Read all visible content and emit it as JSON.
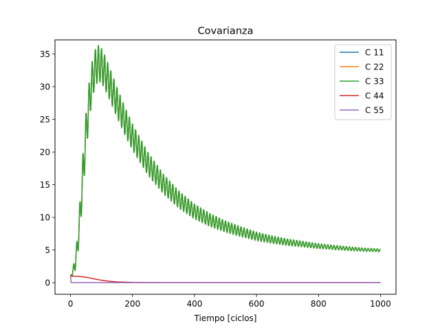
{
  "chart_data": {
    "type": "line",
    "title": "Covarianza",
    "xlabel": "Tiempo [ciclos]",
    "ylabel": "",
    "xlim": [
      -50,
      1050
    ],
    "ylim": [
      -1.77,
      37.17
    ],
    "xticks": [
      0,
      200,
      400,
      600,
      800,
      1000
    ],
    "yticks": [
      0,
      5,
      10,
      15,
      20,
      25,
      30,
      35
    ],
    "legend_position": "top-right",
    "grid": false,
    "series": [
      {
        "name": "C 11",
        "color": "#1f77b4",
        "x": [
          0,
          10,
          20,
          30,
          40,
          50,
          60,
          70,
          80,
          90,
          100,
          110,
          120,
          130,
          140,
          150,
          175,
          200,
          250,
          300,
          350,
          400,
          450,
          500,
          550,
          600,
          650,
          700,
          750,
          800,
          850,
          900,
          950,
          1000
        ],
        "y": [
          1.0,
          1.9,
          4.4,
          9.7,
          16.5,
          22.8,
          27.6,
          31.0,
          32.9,
          33.6,
          33.2,
          32.3,
          31.2,
          30.0,
          28.8,
          27.6,
          24.8,
          22.3,
          18.2,
          15.1,
          12.7,
          10.9,
          9.6,
          8.6,
          7.8,
          7.1,
          6.6,
          6.2,
          5.9,
          5.6,
          5.4,
          5.2,
          5.05,
          4.95
        ],
        "oscillation": {
          "amplitude": 3.5,
          "period": 10,
          "decay": 0.0028
        }
      },
      {
        "name": "C 22",
        "color": "#ff7f0e",
        "x": [
          0,
          10,
          20,
          30,
          40,
          50,
          60,
          70,
          80,
          90,
          100,
          110,
          120,
          130,
          140,
          150,
          175,
          200,
          250,
          300,
          350,
          400,
          450,
          500,
          550,
          600,
          650,
          700,
          750,
          800,
          850,
          900,
          950,
          1000
        ],
        "y": [
          1.0,
          1.9,
          4.4,
          9.7,
          16.5,
          22.8,
          27.6,
          31.0,
          32.9,
          33.6,
          33.2,
          32.3,
          31.2,
          30.0,
          28.8,
          27.6,
          24.8,
          22.3,
          18.2,
          15.1,
          12.7,
          10.9,
          9.6,
          8.6,
          7.8,
          7.1,
          6.6,
          6.2,
          5.9,
          5.6,
          5.4,
          5.2,
          5.05,
          4.95
        ],
        "oscillation": {
          "amplitude": 3.5,
          "period": 10,
          "decay": 0.0028
        }
      },
      {
        "name": "C 33",
        "color": "#2ca02c",
        "x": [
          0,
          10,
          20,
          30,
          40,
          50,
          60,
          70,
          80,
          90,
          100,
          110,
          120,
          130,
          140,
          150,
          175,
          200,
          250,
          300,
          350,
          400,
          450,
          500,
          550,
          600,
          650,
          700,
          750,
          800,
          850,
          900,
          950,
          1000
        ],
        "y": [
          1.0,
          1.9,
          4.4,
          9.7,
          16.5,
          22.8,
          27.6,
          31.0,
          32.9,
          33.6,
          33.2,
          32.3,
          31.2,
          30.0,
          28.8,
          27.6,
          24.8,
          22.3,
          18.2,
          15.1,
          12.7,
          10.9,
          9.6,
          8.6,
          7.8,
          7.1,
          6.6,
          6.2,
          5.9,
          5.6,
          5.4,
          5.2,
          5.05,
          4.95
        ],
        "oscillation": {
          "amplitude": 3.5,
          "period": 10,
          "decay": 0.0028
        }
      },
      {
        "name": "C 44",
        "color": "#d62728",
        "x": [
          0,
          20,
          40,
          60,
          80,
          100,
          125,
          150,
          200,
          250,
          300,
          400,
          500,
          600,
          700,
          800,
          900,
          1000
        ],
        "y": [
          1.0,
          0.98,
          0.9,
          0.75,
          0.55,
          0.38,
          0.22,
          0.12,
          0.04,
          0.015,
          0.006,
          0.002,
          0.001,
          0.0,
          0.0,
          0.0,
          0.0,
          0.0
        ]
      },
      {
        "name": "C 55",
        "color": "#9467bd",
        "x": [
          0,
          1,
          2,
          1000
        ],
        "y": [
          1.0,
          0.5,
          0.0,
          0.0
        ]
      }
    ]
  }
}
